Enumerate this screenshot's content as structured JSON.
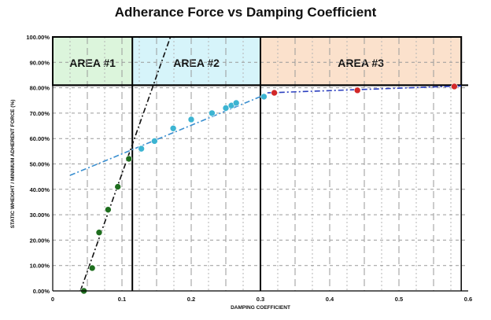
{
  "chart_data": {
    "type": "scatter",
    "title": "Adherance Force vs Damping Coefficient",
    "xlabel": "DAMPING COEFFICIENT",
    "ylabel": "STATIC WHEIGHT / MINIMUM ADHERENT FORCE (%)",
    "xlim": [
      0,
      0.6
    ],
    "ylim": [
      0,
      1.0
    ],
    "x_ticks": [
      "0",
      "0.1",
      "0.2",
      "0.3",
      "0.4",
      "0.5",
      "0.6"
    ],
    "y_ticks": [
      "0.00%",
      "10.00%",
      "20.00%",
      "30.00%",
      "40.00%",
      "50.00%",
      "60.00%",
      "70.00%",
      "80.00%",
      "90.00%",
      "100.00%"
    ],
    "grid": true,
    "areas": [
      {
        "label": "AREA #1",
        "x": [
          0,
          0.115
        ],
        "y": [
          0.81,
          1.0
        ],
        "color": "#dcf5dc"
      },
      {
        "label": "AREA #2",
        "x": [
          0.115,
          0.3
        ],
        "y": [
          0.81,
          1.0
        ],
        "color": "#d6f4fa"
      },
      {
        "label": "AREA #3",
        "x": [
          0.3,
          0.59
        ],
        "y": [
          0.81,
          1.0
        ],
        "color": "#fbe1cc"
      }
    ],
    "series": [
      {
        "color": "#1e6e1e",
        "x": [
          0.045,
          0.057,
          0.067,
          0.08,
          0.094,
          0.11
        ],
        "y": [
          0.0,
          0.09,
          0.23,
          0.32,
          0.41,
          0.52
        ]
      },
      {
        "color": "#3cb4d2",
        "x": [
          0.128,
          0.147,
          0.174,
          0.2,
          0.23,
          0.25,
          0.258,
          0.265,
          0.305
        ],
        "y": [
          0.56,
          0.59,
          0.64,
          0.675,
          0.7,
          0.72,
          0.73,
          0.74,
          0.765
        ]
      },
      {
        "color": "#d22828",
        "x": [
          0.32,
          0.44,
          0.58
        ],
        "y": [
          0.78,
          0.79,
          0.805
        ]
      }
    ],
    "trendlines": [
      {
        "color": "#111111",
        "x": [
          0.04,
          0.17
        ],
        "y": [
          0.0,
          1.0
        ]
      },
      {
        "color": "#3a8fd0",
        "x": [
          0.025,
          0.3
        ],
        "y": [
          0.455,
          0.765
        ]
      },
      {
        "color": "#2b3fbf",
        "x": [
          0.31,
          0.59
        ],
        "y": [
          0.78,
          0.807
        ]
      }
    ]
  }
}
